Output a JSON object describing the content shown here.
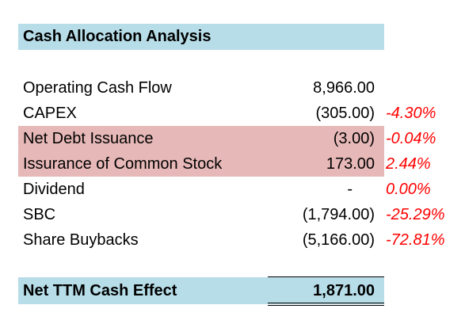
{
  "title": "Cash Allocation Analysis",
  "rows": [
    {
      "label": "Operating Cash Flow",
      "value": "8,966.00",
      "pct": "",
      "highlight": false
    },
    {
      "label": "CAPEX",
      "value": "(305.00)",
      "pct": "-4.30%",
      "highlight": false
    },
    {
      "label": "Net Debt Issuance",
      "value": "(3.00)",
      "pct": "-0.04%",
      "highlight": true
    },
    {
      "label": "Issurance of Common Stock",
      "value": "173.00",
      "pct": "2.44%",
      "highlight": true
    },
    {
      "label": "Dividend",
      "value": "-",
      "pct": "0.00%",
      "highlight": false
    },
    {
      "label": "SBC",
      "value": "(1,794.00)",
      "pct": "-25.29%",
      "highlight": false
    },
    {
      "label": "Share Buybacks",
      "value": "(5,166.00)",
      "pct": "-72.81%",
      "highlight": false
    }
  ],
  "total": {
    "label": "Net TTM Cash Effect",
    "value": "1,871.00"
  },
  "colors": {
    "header_bg": "#b7dde8",
    "highlight_bg": "#e6b8b7",
    "pct_text": "#ff0000"
  }
}
